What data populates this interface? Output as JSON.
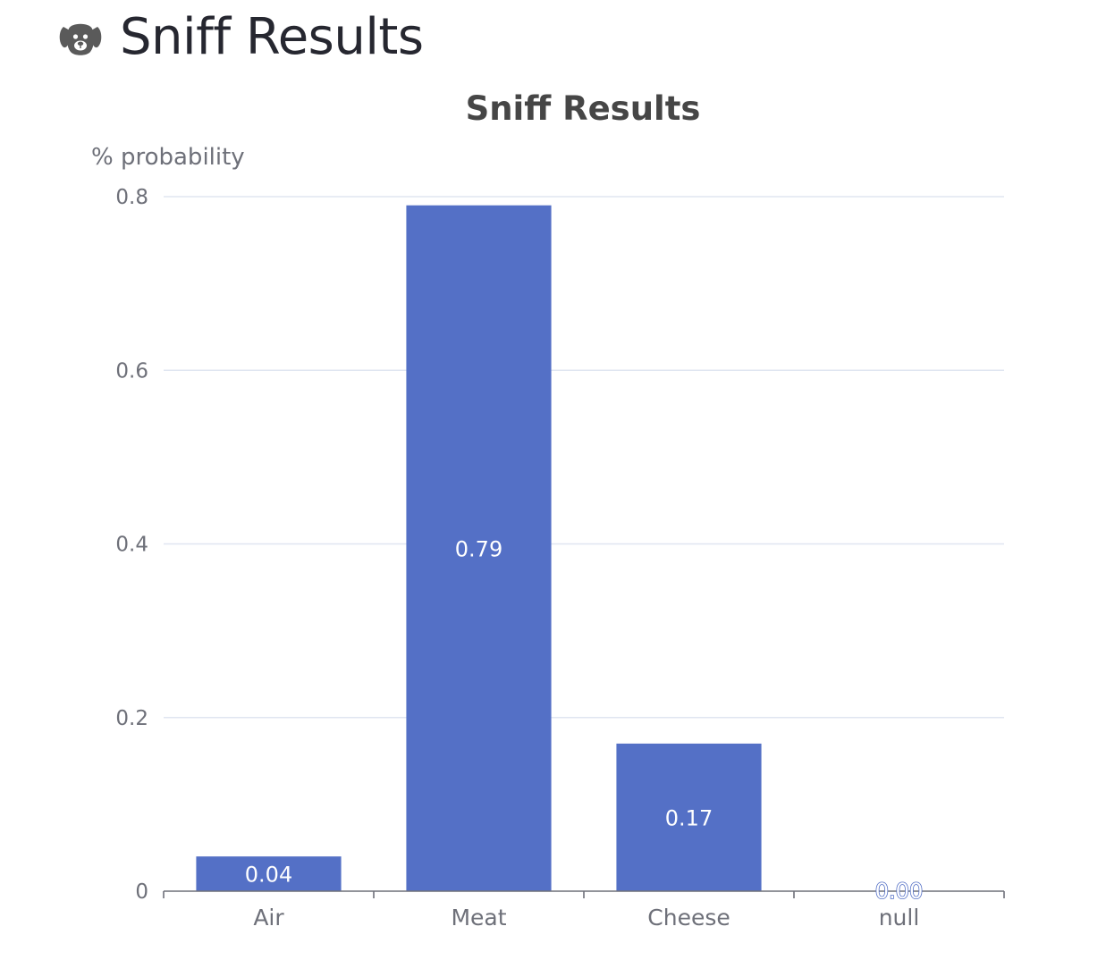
{
  "header": {
    "title": "Sniff Results",
    "icon": "dog-face-icon"
  },
  "chart_data": {
    "type": "bar",
    "title": "Sniff Results",
    "ylabel": "% probability",
    "xlabel": "",
    "categories": [
      "Air",
      "Meat",
      "Cheese",
      "null"
    ],
    "values": [
      0.04,
      0.79,
      0.17,
      0.0
    ],
    "value_labels": [
      "0.04",
      "0.79",
      "0.17",
      "0.00"
    ],
    "ylim": [
      0,
      0.8
    ],
    "yticks": [
      0,
      0.2,
      0.4,
      0.6,
      0.8
    ],
    "ytick_labels": [
      "0",
      "0.2",
      "0.4",
      "0.6",
      "0.8"
    ],
    "grid": true,
    "legend": "none",
    "colors": {
      "bar": "#5470c6",
      "grid": "#e0e6f1",
      "axis": "#6e7079",
      "title": "#464646"
    }
  }
}
